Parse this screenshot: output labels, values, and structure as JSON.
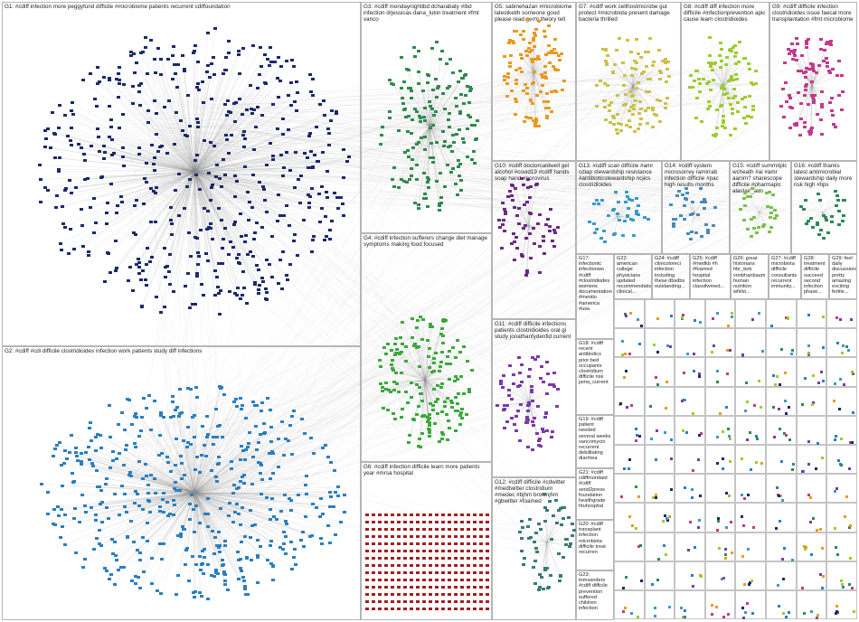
{
  "graph": {
    "colors": {
      "edge": "#8a8a8a",
      "border": "#b5b5b5",
      "G1": "#1b2a6b",
      "G2": "#2a7fc1",
      "G3": "#2f8a4e",
      "G4": "#3ca83c",
      "G5": "#e89a22",
      "G6": "#a8c838",
      "G7": "#c9c24a",
      "G8": "#9ccc2c",
      "G9": "#c23a8c",
      "G10": "#6a2a82",
      "G11": "#7a3aa8",
      "G12": "#3a7a7a",
      "G13": "#3a9ac8",
      "G14": "#4a8ab8",
      "G15": "#7cc04c",
      "G16": "#2a8a5a",
      "G6red": "#a31f1f",
      "mixed": "#6a6a6a"
    },
    "panels": [
      {
        "id": "G1",
        "label": "G1: #cdiff infection more peggyfund difficile #microbiome patients recurrent cdiffoundation"
      },
      {
        "id": "G2",
        "label": "G2: #cdiff #cdi difficile clostridioides infection work patients study diff infections"
      },
      {
        "id": "G3",
        "label": "G3: #cdiff mondaynightibd dcharabaty #ibd infection drjessicas dana_lukin treatment #fmt vanco"
      },
      {
        "id": "G4",
        "label": "G4: #cdiff infection sufferers change diet manage symptoms making food focused"
      },
      {
        "id": "G5",
        "label": "G5: sabinehazan #microbiome latestkeith someone good please read germ theory tell"
      },
      {
        "id": "G6",
        "label": "G6: #cdiff infection difficile learn more patients year #mrsa hospital"
      },
      {
        "id": "G7",
        "label": "G7: #cdiff work cellhostmicrobe gut protect #microbiota present damage bacteria thrilled"
      },
      {
        "id": "G8",
        "label": "G8: #cdiff diff infection more difficile #infectionprevention apic cause learn clostridioides"
      },
      {
        "id": "G9",
        "label": "G9: #cdiff difficile infection clostridioides issue faecal more transplantation #fmt microbiome"
      },
      {
        "id": "G10",
        "label": "G10: #cdiff doctorcaldwell gel alcohol #covid19 #cdiff hands soap hand #norovirus"
      },
      {
        "id": "G11",
        "label": "G11: #cdiff difficile infections patients clostridioides oral gi study jonathanfydenfid current"
      },
      {
        "id": "G12",
        "label": "G12: #cdiff difficile #cdwitter #medtwitter clostridium #medec #bjhm brownjhm #gbwitter #foamed"
      },
      {
        "id": "G13",
        "label": "G13: #cdiff scan difficile #amr cdiap stewardship resistance #antibioticstewardship ncjics clostridioides"
      },
      {
        "id": "G14",
        "label": "G14: #cdiff system microsorrey ramirrab infection difficile #pac high results months"
      },
      {
        "id": "G15",
        "label": "G15: #cdiff summitplc wcheath #ai #amr aanim? sharescope difficile #pharmaplc alastair_aim"
      },
      {
        "id": "G16",
        "label": "G16: #cdiff thanks latest antimicrobial stewardship daily more risk high #tips"
      },
      {
        "id": "G17",
        "label": "G17: infectiontc infectionwo #cdiff #clostridiodes womens documentation #mentio #america #usa"
      },
      {
        "id": "G18",
        "label": "G18: #cdiff recent antibiotics prior bed occupants clostridium difficile risk jama_current"
      },
      {
        "id": "G19",
        "label": "G19: #cdiff patient needed several weeks vancomycin recurrent debilitating diarrhea"
      },
      {
        "id": "G20",
        "label": "G20: #cdiff transplant infection microbiota difficile treat recurren"
      },
      {
        "id": "G21",
        "label": "G21: #cdiff cdiffmondaid #cdiff send2press foundation healthgrade htuhospital"
      },
      {
        "id": "G22",
        "label": "G22: american college physicians updated recommendatio clinical..."
      },
      {
        "id": "G23",
        "label": "G23: tomsanders #cdiff difficile prevention suffered children infection"
      }
    ],
    "small_labels": [
      "G24: #cdiff clinicoloreci infection including these dbsdbs outstanding...",
      "G25: #cdiff #medkb #h #foamed hospital infection classifwmed...",
      "G26: great historians hbr_bob vonbhanbaum human nutrition whilst...",
      "G27: #cdiff microbiota difficile consultants recurrent immunity...",
      "G28: treatment difficile succeed second infection phase...",
      "G29: feel daily discussions pretty amazing exciting fertile..."
    ]
  }
}
